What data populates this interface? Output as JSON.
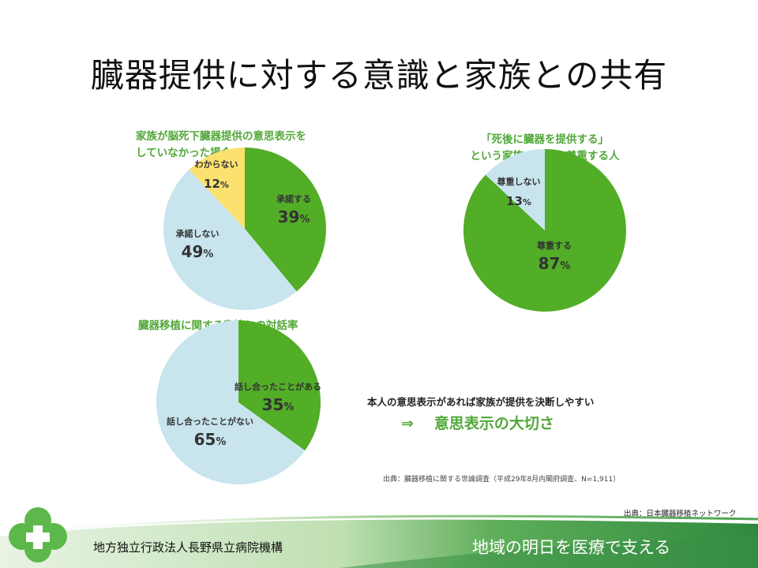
{
  "title": "臓器提供に対する意識と家族との共有",
  "chart_data": [
    {
      "type": "pie",
      "title_lines": [
        "家族が脳死下臓器提供の意思表示を",
        "していなかった場合"
      ],
      "slices": [
        {
          "label": "承諾する",
          "value": 39,
          "color": "#52ad27"
        },
        {
          "label": "承諾しない",
          "value": 49,
          "color": "#c8e5ee"
        },
        {
          "label": "わからない",
          "value": 12,
          "color": "#fbe16f"
        }
      ]
    },
    {
      "type": "pie",
      "title_lines": [
        "「死後に臓器を提供する」",
        "という家族の意思を尊重する人"
      ],
      "slices": [
        {
          "label": "尊重する",
          "value": 87,
          "color": "#52ad27"
        },
        {
          "label": "尊重しない",
          "value": 13,
          "color": "#c8e5ee"
        }
      ]
    },
    {
      "type": "pie",
      "title_lines": [
        "臓器移植に関する家族との対話率"
      ],
      "slices": [
        {
          "label": "話し合ったことがある",
          "value": 35,
          "color": "#52ad27"
        },
        {
          "label": "話し合ったことがない",
          "value": 65,
          "color": "#c8e5ee"
        }
      ]
    }
  ],
  "note": "本人の意思表示があれば家族が提供を決断しやすい",
  "emphasis": {
    "arrow": "⇒",
    "text": "意思表示の大切さ"
  },
  "source_survey": "出典：臓器移植に関する世論調査（平成29年8月内閣府調査、N=1,911）",
  "source_network": "出典：日本臓器移植ネットワーク",
  "footer": {
    "org": "地方独立行政法人長野県立病院機構",
    "slogan": "地域の明日を医療で支える"
  },
  "colors": {
    "accent": "#52a83a",
    "footer_green": "#3a8f46"
  }
}
